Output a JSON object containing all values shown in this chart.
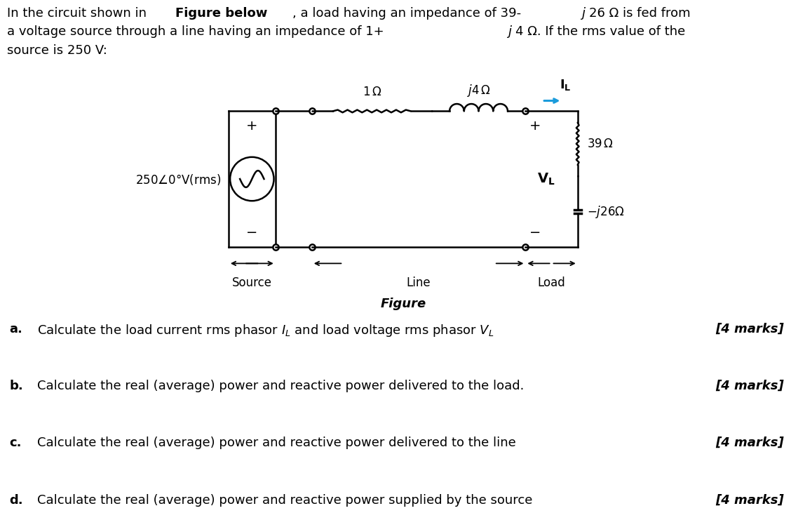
{
  "bg_color": "#ffffff",
  "text_color": "#000000",
  "line_color": "#000000",
  "arrow_color": "#1a9bdb",
  "figure_label": "Figure",
  "source_label": "Source",
  "line_label": "Line",
  "load_label": "Load",
  "source_voltage": "250∠0°V(rms)",
  "r_load_label": "39 Ω",
  "c_load_label": "-j26Ω",
  "q_a_letter": "a.",
  "q_a_text": "Calculate the load current rms phasor $I_L$ and load voltage rms phasor $V_L$",
  "q_a_marks": "[4 marks]",
  "q_b_letter": "b.",
  "q_b_text": "Calculate the real (average) power and reactive power delivered to the load.",
  "q_b_marks": "[4 marks]",
  "q_c_letter": "c.",
  "q_c_text": "Calculate the real (average) power and reactive power delivered to the line",
  "q_c_marks": "[4 marks]",
  "q_d_letter": "d.",
  "q_d_text": "Calculate the real (average) power and reactive power supplied by the source",
  "q_d_marks": "[4 marks]"
}
